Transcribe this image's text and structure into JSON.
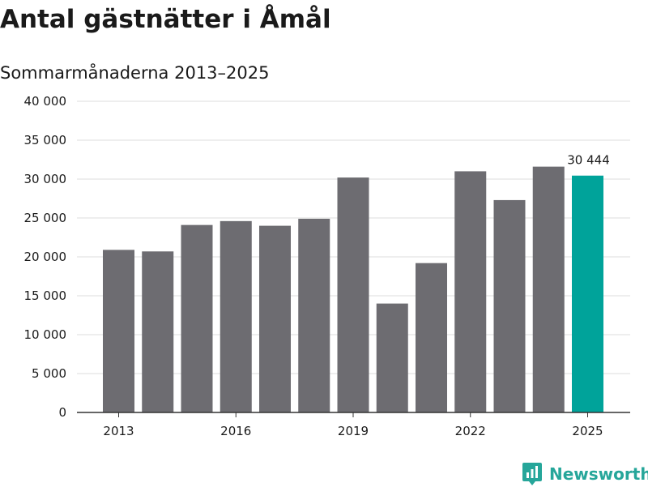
{
  "title": "Antal gästnätter i Åmål",
  "subtitle": "Sommarmånaderna 2013–2025",
  "brand": {
    "name": "Newsworthy",
    "color": "#26a69a"
  },
  "colors": {
    "bar": "#6d6c71",
    "highlight": "#00a39a",
    "grid": "#dcdcdc",
    "axis": "#333333"
  },
  "chart_data": {
    "type": "bar",
    "title": "Antal gästnätter i Åmål",
    "subtitle": "Sommarmånaderna 2013–2025",
    "categories": [
      "2013",
      "2014",
      "2015",
      "2016",
      "2017",
      "2018",
      "2019",
      "2020",
      "2021",
      "2022",
      "2023",
      "2024",
      "2025"
    ],
    "values": [
      20900,
      20700,
      24100,
      24600,
      24000,
      24900,
      30200,
      14000,
      19200,
      31000,
      27300,
      31600,
      30444
    ],
    "x_tick_labels": [
      "2013",
      "2016",
      "2019",
      "2022",
      "2025"
    ],
    "y_ticks": [
      0,
      5000,
      10000,
      15000,
      20000,
      25000,
      30000,
      35000,
      40000
    ],
    "y_tick_labels": [
      "0",
      "5 000",
      "10 000",
      "15 000",
      "20 000",
      "25 000",
      "30 000",
      "35 000",
      "40 000"
    ],
    "ylim": [
      0,
      40000
    ],
    "highlight_category": "2025",
    "data_labels": [
      {
        "category": "2025",
        "text": "30 444"
      }
    ],
    "grid": true,
    "legend": "none"
  }
}
